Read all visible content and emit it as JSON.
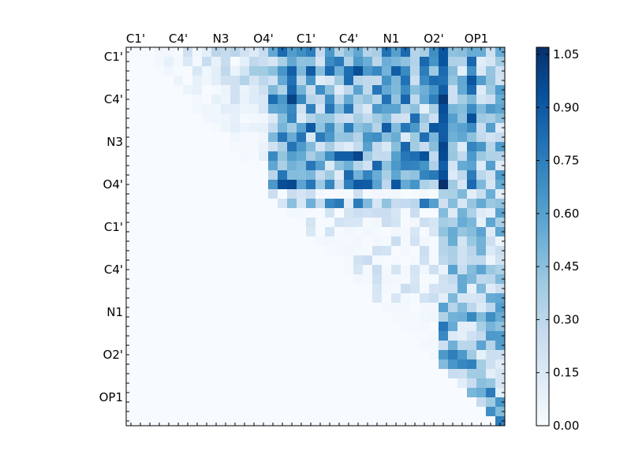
{
  "chart_data": {
    "type": "heatmap",
    "title": "",
    "xlabel": "",
    "ylabel": "",
    "matrix_size": 40,
    "axis_tick_labels": [
      "C1'",
      "C4'",
      "N3",
      "O4'",
      "C1'",
      "C4'",
      "N1",
      "O2'",
      "OP1"
    ],
    "tick_label_index_positions": [
      0.5,
      5.0,
      9.5,
      14.0,
      18.5,
      23.0,
      27.5,
      32.0,
      36.5
    ],
    "colormap": "Blues",
    "colorbar": {
      "min": 0.0,
      "max": 1.07,
      "tick_values": [
        0.0,
        0.15,
        0.3,
        0.45,
        0.6,
        0.75,
        0.9,
        1.05
      ],
      "tick_labels": [
        "0.00",
        "0.15",
        "0.30",
        "0.45",
        "0.60",
        "0.75",
        "0.90",
        "1.05"
      ]
    },
    "structure": "upper-triangular (below diagonal is zero)",
    "blocks_approx": [
      {
        "rows": [
          0,
          14
        ],
        "cols": [
          0,
          14
        ],
        "mean_value": 0.1
      },
      {
        "rows": [
          0,
          14
        ],
        "cols": [
          15,
          33
        ],
        "mean_value": 0.45
      },
      {
        "rows": [
          0,
          14
        ],
        "cols": [
          33,
          40
        ],
        "mean_value": 0.3
      },
      {
        "rows": [
          15,
          26
        ],
        "cols": [
          15,
          33
        ],
        "mean_value": 0.08
      },
      {
        "rows": [
          15,
          40
        ],
        "cols": [
          33,
          40
        ],
        "mean_value": 0.4
      }
    ],
    "max_cell": {
      "row": 14,
      "col": 33,
      "value": 1.07
    }
  }
}
